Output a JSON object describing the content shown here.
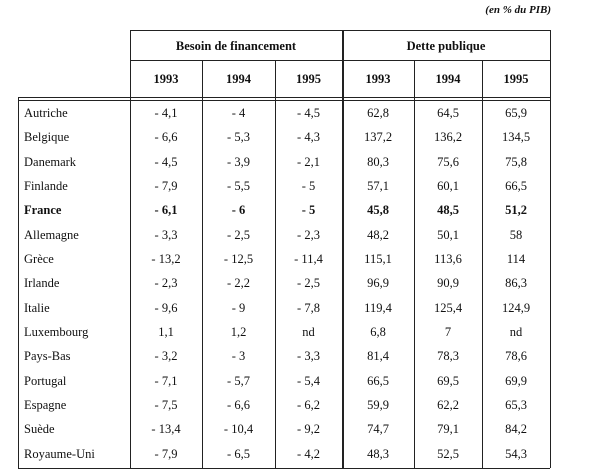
{
  "note": "(en % du PIB)",
  "table": {
    "group_headers": [
      "Besoin de financement",
      "Dette publique"
    ],
    "columns": [
      "1993",
      "1994",
      "1995",
      "1993",
      "1994",
      "1995"
    ],
    "rows": [
      {
        "country": "Autriche",
        "values": [
          "- 4,1",
          "- 4",
          "- 4,5",
          "62,8",
          "64,5",
          "65,9"
        ]
      },
      {
        "country": "Belgique",
        "values": [
          "- 6,6",
          "- 5,3",
          "- 4,3",
          "137,2",
          "136,2",
          "134,5"
        ]
      },
      {
        "country": "Danemark",
        "values": [
          "- 4,5",
          "- 3,9",
          "- 2,1",
          "80,3",
          "75,6",
          "75,8"
        ]
      },
      {
        "country": "Finlande",
        "values": [
          "- 7,9",
          "- 5,5",
          "- 5",
          "57,1",
          "60,1",
          "66,5"
        ]
      },
      {
        "country": "France",
        "values": [
          "- 6,1",
          "- 6",
          "- 5",
          "45,8",
          "48,5",
          "51,2"
        ],
        "bold": true
      },
      {
        "country": "Allemagne",
        "values": [
          "- 3,3",
          "- 2,5",
          "- 2,3",
          "48,2",
          "50,1",
          "58"
        ]
      },
      {
        "country": "Grèce",
        "values": [
          "- 13,2",
          "- 12,5",
          "- 11,4",
          "115,1",
          "113,6",
          "114"
        ]
      },
      {
        "country": "Irlande",
        "values": [
          "- 2,3",
          "- 2,2",
          "- 2,5",
          "96,9",
          "90,9",
          "86,3"
        ]
      },
      {
        "country": "Italie",
        "values": [
          "- 9,6",
          "- 9",
          "- 7,8",
          "119,4",
          "125,4",
          "124,9"
        ]
      },
      {
        "country": "Luxembourg",
        "values": [
          "1,1",
          "1,2",
          "nd",
          "6,8",
          "7",
          "nd"
        ]
      },
      {
        "country": "Pays-Bas",
        "values": [
          "- 3,2",
          "- 3",
          "- 3,3",
          "81,4",
          "78,3",
          "78,6"
        ]
      },
      {
        "country": "Portugal",
        "values": [
          "- 7,1",
          "- 5,7",
          "- 5,4",
          "66,5",
          "69,5",
          "69,9"
        ]
      },
      {
        "country": "Espagne",
        "values": [
          "- 7,5",
          "- 6,6",
          "- 6,2",
          "59,9",
          "62,2",
          "65,3"
        ]
      },
      {
        "country": "Suède",
        "values": [
          "- 13,4",
          "- 10,4",
          "- 9,2",
          "74,7",
          "79,1",
          "84,2"
        ]
      },
      {
        "country": "Royaume-Uni",
        "values": [
          "- 7,9",
          "- 6,5",
          "- 4,2",
          "48,3",
          "52,5",
          "54,3"
        ]
      }
    ]
  }
}
